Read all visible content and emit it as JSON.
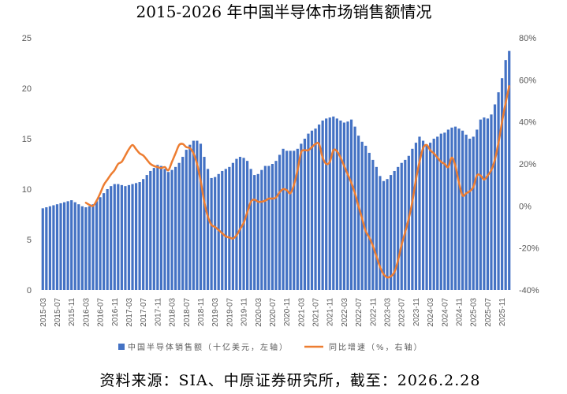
{
  "source": "资料来源：SIA、中原证券研究所，截至：2026.2.28",
  "colors": {
    "bar": "#4472C4",
    "line": "#ED7D31",
    "axis_text": "#595959"
  },
  "chart_data": {
    "type": "bar",
    "title": "2015-2026 年中国半导体市场销售额情况",
    "xlabel": "",
    "categories": [
      "2015-03",
      "2015-04",
      "2015-05",
      "2015-06",
      "2015-07",
      "2015-08",
      "2015-09",
      "2015-10",
      "2015-11",
      "2015-12",
      "2016-01",
      "2016-02",
      "2016-03",
      "2016-04",
      "2016-05",
      "2016-06",
      "2016-07",
      "2016-08",
      "2016-09",
      "2016-10",
      "2016-11",
      "2016-12",
      "2017-01",
      "2017-02",
      "2017-03",
      "2017-04",
      "2017-05",
      "2017-06",
      "2017-07",
      "2017-08",
      "2017-09",
      "2017-10",
      "2017-11",
      "2017-12",
      "2018-01",
      "2018-02",
      "2018-03",
      "2018-04",
      "2018-05",
      "2018-06",
      "2018-07",
      "2018-08",
      "2018-09",
      "2018-10",
      "2018-11",
      "2018-12",
      "2019-01",
      "2019-02",
      "2019-03",
      "2019-04",
      "2019-05",
      "2019-06",
      "2019-07",
      "2019-08",
      "2019-09",
      "2019-10",
      "2019-11",
      "2019-12",
      "2020-01",
      "2020-02",
      "2020-03",
      "2020-04",
      "2020-05",
      "2020-06",
      "2020-07",
      "2020-08",
      "2020-09",
      "2020-10",
      "2020-11",
      "2020-12",
      "2021-01",
      "2021-02",
      "2021-03",
      "2021-04",
      "2021-05",
      "2021-06",
      "2021-07",
      "2021-08",
      "2021-09",
      "2021-10",
      "2021-11",
      "2021-12",
      "2022-01",
      "2022-02",
      "2022-03",
      "2022-04",
      "2022-05",
      "2022-06",
      "2022-07",
      "2022-08",
      "2022-09",
      "2022-10",
      "2022-11",
      "2022-12",
      "2023-01",
      "2023-02",
      "2023-03",
      "2023-04",
      "2023-05",
      "2023-06",
      "2023-07",
      "2023-08",
      "2023-09",
      "2023-10",
      "2023-11",
      "2023-12",
      "2024-01",
      "2024-02",
      "2024-03",
      "2024-04",
      "2024-05",
      "2024-06",
      "2024-07",
      "2024-08",
      "2024-09",
      "2024-10",
      "2024-11",
      "2024-12",
      "2025-01",
      "2025-02",
      "2025-03",
      "2025-04",
      "2025-05",
      "2025-06",
      "2025-07",
      "2025-08",
      "2025-09",
      "2025-10",
      "2025-11",
      "2025-12",
      "2026-01"
    ],
    "xticks": [
      "2015-03",
      "2015-07",
      "2015-11",
      "2016-03",
      "2016-07",
      "2016-11",
      "2017-03",
      "2017-07",
      "2017-11",
      "2018-03",
      "2018-07",
      "2018-11",
      "2019-03",
      "2019-07",
      "2019-11",
      "2020-03",
      "2020-07",
      "2020-11",
      "2021-03",
      "2021-07",
      "2021-11",
      "2022-03",
      "2022-07",
      "2022-11",
      "2023-03",
      "2023-07",
      "2023-11",
      "2024-03",
      "2024-07",
      "2024-11",
      "2025-03",
      "2025-07",
      "2025-11"
    ],
    "series": [
      {
        "name": "中国半导体销售额（十亿美元，左轴）",
        "type": "bar",
        "axis": "left",
        "values": [
          8.1,
          8.2,
          8.3,
          8.4,
          8.5,
          8.6,
          8.7,
          8.8,
          8.9,
          8.7,
          8.5,
          8.3,
          8.2,
          8.3,
          8.5,
          8.8,
          9.2,
          9.6,
          10.0,
          10.3,
          10.5,
          10.5,
          10.4,
          10.3,
          10.4,
          10.5,
          10.6,
          10.7,
          11.0,
          11.4,
          11.8,
          12.1,
          12.4,
          12.3,
          12.0,
          11.7,
          11.9,
          12.2,
          12.6,
          13.2,
          13.9,
          14.4,
          14.8,
          14.8,
          14.5,
          13.2,
          12.0,
          11.1,
          11.2,
          11.5,
          11.8,
          12.0,
          12.2,
          12.6,
          13.0,
          13.2,
          13.1,
          12.8,
          12.0,
          11.4,
          11.5,
          11.9,
          12.3,
          12.3,
          12.5,
          12.8,
          13.4,
          14.0,
          13.8,
          13.8,
          13.8,
          14.0,
          14.5,
          15.0,
          15.5,
          15.8,
          16.0,
          16.4,
          16.8,
          17.0,
          17.1,
          17.2,
          17.0,
          16.8,
          16.6,
          16.7,
          16.9,
          16.2,
          15.3,
          14.7,
          14.3,
          13.6,
          12.9,
          12.2,
          11.3,
          10.8,
          11.0,
          11.4,
          11.8,
          12.2,
          12.6,
          12.9,
          13.3,
          14.0,
          14.6,
          15.2,
          14.8,
          14.4,
          14.6,
          15.0,
          15.2,
          15.5,
          15.6,
          15.9,
          16.1,
          16.2,
          16.0,
          15.8,
          15.4,
          15.0,
          15.2,
          15.9,
          16.9,
          17.1,
          17.0,
          17.4,
          18.4,
          19.6,
          21.0,
          22.8,
          23.7
        ]
      },
      {
        "name": "同比增速（%，右轴）",
        "type": "line",
        "axis": "right",
        "values": [
          null,
          null,
          null,
          null,
          null,
          null,
          null,
          null,
          null,
          null,
          null,
          null,
          1.5,
          0.5,
          0.0,
          2.5,
          6.0,
          10.0,
          12.5,
          15.0,
          17.0,
          20.0,
          21.0,
          24.0,
          27.0,
          29.0,
          27.0,
          25.0,
          24.0,
          22.0,
          20.0,
          19.0,
          18.5,
          18.0,
          18.5,
          17.0,
          21.0,
          25.0,
          29.0,
          29.5,
          28.0,
          27.5,
          25.0,
          20.0,
          12.0,
          2.0,
          -5.0,
          -9.0,
          -10.0,
          -11.5,
          -13.0,
          -14.5,
          -15.0,
          -15.5,
          -14.0,
          -11.0,
          -8.0,
          -3.0,
          2.0,
          3.0,
          2.0,
          2.0,
          2.5,
          3.5,
          3.5,
          4.0,
          6.5,
          8.0,
          7.5,
          6.0,
          10.0,
          17.0,
          25.5,
          26.5,
          26.5,
          28.0,
          29.5,
          29.5,
          23.0,
          20.0,
          21.0,
          26.5,
          26.0,
          23.0,
          19.0,
          15.0,
          11.0,
          6.0,
          -0.2,
          -6.0,
          -12.0,
          -15.0,
          -19.0,
          -24.0,
          -29.0,
          -32.5,
          -34.0,
          -33.5,
          -31.5,
          -26.0,
          -18.5,
          -12.5,
          -6.0,
          2.0,
          12.5,
          21.0,
          27.5,
          29.0,
          26.5,
          25.0,
          23.0,
          21.0,
          20.0,
          18.5,
          23.0,
          19.0,
          11.0,
          5.0,
          6.0,
          7.0,
          9.0,
          14.5,
          14.5,
          12.5,
          14.5,
          17.0,
          22.0,
          30.0,
          40.0,
          49.0,
          57.0
        ]
      }
    ],
    "y_left": {
      "label": "",
      "ylim": [
        0,
        25
      ],
      "ticks": [
        0,
        5,
        10,
        15,
        20,
        25
      ]
    },
    "y_right": {
      "label": "",
      "ylim": [
        -40,
        80
      ],
      "ticks": [
        "-40%",
        "-20%",
        "0%",
        "20%",
        "40%",
        "60%",
        "80%"
      ]
    },
    "grid": false,
    "legend": "bottom"
  }
}
